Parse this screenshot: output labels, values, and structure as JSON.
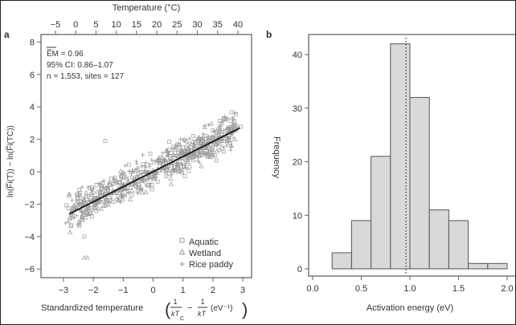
{
  "chart_data": [
    {
      "panel": "a",
      "type": "scatter",
      "xlabel": "Standardized temperature",
      "xlabel_formula": {
        "t1": "1",
        "b1": "kT",
        "sub1": "C",
        "t2": "1",
        "b2": "kT",
        "unit": "(eV⁻¹)"
      },
      "ylabel": "ln(F̅i(T)) − ln(F̅i(TC))",
      "top_xlabel": "Temperature (°C)",
      "xlim": [
        -3.75,
        3.3
      ],
      "ylim": [
        -6.5,
        8.5
      ],
      "xticks": [
        "−3",
        "−2",
        "−1",
        "0",
        "1",
        "2",
        "3"
      ],
      "xtick_values": [
        -3,
        -2,
        -1,
        0,
        1,
        2,
        3
      ],
      "yticks": [
        "−6",
        "−4",
        "−2",
        "0",
        "2",
        "4",
        "6",
        "8"
      ],
      "ytick_values": [
        -6,
        -4,
        -2,
        0,
        2,
        4,
        6,
        8
      ],
      "top_xticks": [
        "−5",
        "0",
        "5",
        "10",
        "15",
        "20",
        "25",
        "30",
        "35",
        "40"
      ],
      "annotations": {
        "em": "E̅M = 0.96",
        "ci": "95% CI: 0.86–1.07",
        "n": "n = 1,553, sites = 127"
      },
      "fit_line": {
        "x": [
          -2.8,
          2.9
        ],
        "y": [
          -2.6,
          2.7
        ]
      },
      "legend_position": "bottom-right",
      "series": [
        {
          "name": "Aquatic",
          "marker": "square"
        },
        {
          "name": "Wetland",
          "marker": "triangle"
        },
        {
          "name": "Rice paddy",
          "marker": "plus"
        }
      ],
      "n_points": 1553,
      "color": "#999999"
    },
    {
      "panel": "b",
      "type": "bar",
      "xlabel": "Activation energy (eV)",
      "ylabel": "Frequency",
      "xlim": [
        -0.05,
        2.05
      ],
      "ylim": [
        0,
        44
      ],
      "xticks": [
        "0.0",
        "0.5",
        "1.0",
        "1.5",
        "2.0"
      ],
      "xtick_values": [
        0,
        0.5,
        1,
        1.5,
        2
      ],
      "yticks": [
        "0",
        "10",
        "20",
        "30",
        "40"
      ],
      "ytick_values": [
        0,
        10,
        20,
        30,
        40
      ],
      "bin_edges": [
        0.2,
        0.4,
        0.6,
        0.8,
        1.0,
        1.2,
        1.4,
        1.6,
        1.8,
        2.0
      ],
      "values": [
        3,
        9,
        21,
        42,
        32,
        11,
        9,
        1,
        1
      ],
      "mean_line": 0.96,
      "bar_color": "#d9d9d9"
    }
  ]
}
